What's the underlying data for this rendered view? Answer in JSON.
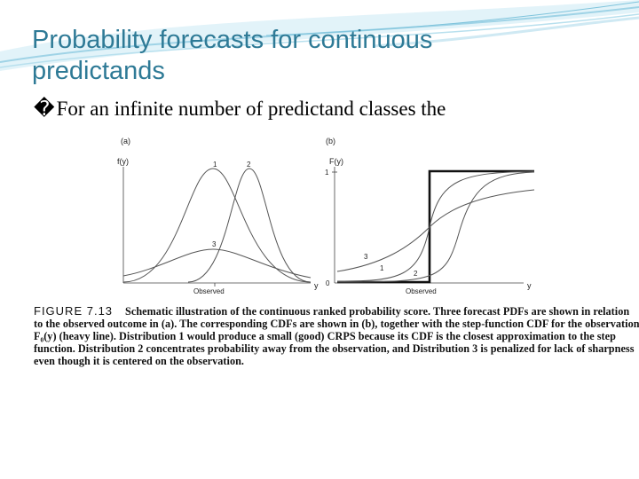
{
  "slide": {
    "title_line1": "Probability forecasts for continuous",
    "title_line2": "predictands",
    "bullet_glyph": "�",
    "bullet_text": "For an infinite number of predictand classes the"
  },
  "figure": {
    "panel_a": {
      "label": "(a)",
      "ylabel": "f(y)",
      "xlabel": "y",
      "observed": "Observed",
      "curve_labels": [
        "1",
        "2",
        "3"
      ]
    },
    "panel_b": {
      "label": "(b)",
      "ylabel": "F(y)",
      "xlabel": "y",
      "observed": "Observed",
      "tick_top": "1",
      "tick_bottom": "0",
      "curve_labels": [
        "1",
        "2",
        "3"
      ]
    }
  },
  "caption": {
    "fig_label": "FIGURE 7.13",
    "text": "Schematic illustration of the continuous ranked probability score. Three forecast PDFs are shown in relation to the observed outcome in (a). The corresponding CDFs are shown in (b), together with the step-function CDF for the observation F₀(y) (heavy line). Distribution 1 would produce a small (good) CRPS because its CDF is the closest approximation to the step function. Distribution 2 concentrates probability away from the observation, and Distribution 3 is penalized for lack of sharpness even though it is centered on the observation."
  },
  "colors": {
    "title": "#2e7a96",
    "swoosh": "#9fd3e6"
  }
}
